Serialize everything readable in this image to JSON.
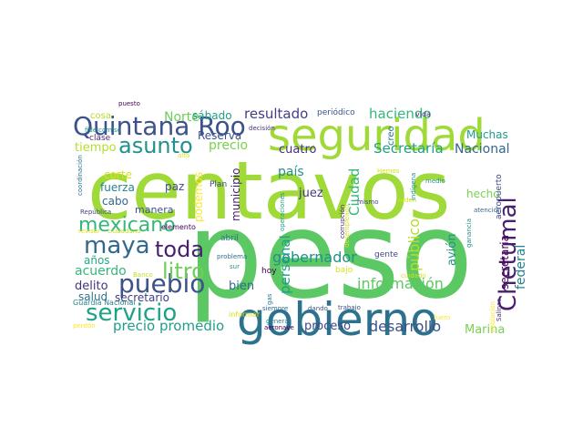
{
  "word_cloud": {
    "words": [
      {
        "text": "peso",
        "color": "#5cc863"
      },
      {
        "text": "centavos",
        "color": "#a0da39"
      },
      {
        "text": "gobierno",
        "color": "#2c728e"
      },
      {
        "text": "seguridad",
        "color": "#a0da39"
      },
      {
        "text": "Quintana Roo",
        "color": "#3b528b"
      },
      {
        "text": "Chetumal",
        "color": "#481f70"
      },
      {
        "text": "mexicano",
        "color": "#35b779"
      },
      {
        "text": "maya",
        "color": "#31688e"
      },
      {
        "text": "asunto",
        "color": "#21918c"
      },
      {
        "text": "pueblo",
        "color": "#3b528b"
      },
      {
        "text": "servicio",
        "color": "#1fa188"
      },
      {
        "text": "toda",
        "color": "#481f70"
      },
      {
        "text": "litro",
        "color": "#6ece58"
      },
      {
        "text": "gobernador",
        "color": "#21918c"
      },
      {
        "text": "precio promedio",
        "color": "#1f9e89"
      },
      {
        "text": "desarrollo",
        "color": "#3b528b"
      },
      {
        "text": "información",
        "color": "#5cc863"
      },
      {
        "text": "federal",
        "color": "#26828e"
      },
      {
        "text": "público",
        "color": "#b5de2b"
      },
      {
        "text": "Secretaría",
        "color": "#1fa188"
      },
      {
        "text": "Nacional",
        "color": "#31688e"
      },
      {
        "text": "Ciudad",
        "color": "#35b779"
      },
      {
        "text": "personal",
        "color": "#1f9e89"
      },
      {
        "text": "avión",
        "color": "#21918c"
      },
      {
        "text": "secretaria",
        "color": "#440154"
      },
      {
        "text": "resultado",
        "color": "#433e85"
      },
      {
        "text": "haciendo",
        "color": "#35b779"
      },
      {
        "text": "Norte",
        "color": "#6ece58"
      },
      {
        "text": "sábado",
        "color": "#1f9e89"
      },
      {
        "text": "precio",
        "color": "#7ad151"
      },
      {
        "text": "cuatro",
        "color": "#46327e"
      },
      {
        "text": "país",
        "color": "#21918c"
      },
      {
        "text": "municipio",
        "color": "#481f70"
      },
      {
        "text": "podemos",
        "color": "#fde725"
      },
      {
        "text": "tiempo",
        "color": "#b5de2b"
      },
      {
        "text": "corte",
        "color": "#d8e219"
      },
      {
        "text": "fuerza",
        "color": "#26828e"
      },
      {
        "text": "cabo",
        "color": "#31688e"
      },
      {
        "text": "paz",
        "color": "#3e4989"
      },
      {
        "text": "juez",
        "color": "#443983"
      },
      {
        "text": "hecho",
        "color": "#7ad151"
      },
      {
        "text": "acuerdo",
        "color": "#35b779"
      },
      {
        "text": "delito",
        "color": "#46327e"
      },
      {
        "text": "salud",
        "color": "#2c728e"
      },
      {
        "text": "secretario",
        "color": "#433e85"
      },
      {
        "text": "bien",
        "color": "#31688e"
      },
      {
        "text": "proceso",
        "color": "#3e4989"
      },
      {
        "text": "Marina",
        "color": "#7ad151"
      },
      {
        "text": "Muchas",
        "color": "#1f9e89"
      },
      {
        "text": "años",
        "color": "#22a884"
      },
      {
        "text": "manera",
        "color": "#3b528b"
      },
      {
        "text": "cosa",
        "color": "#b5de2b"
      },
      {
        "text": "Plan",
        "color": "#3e4989"
      },
      {
        "text": "Reserva",
        "color": "#3b528b"
      },
      {
        "text": "creo",
        "color": "#2c728e"
      },
      {
        "text": "aeropuerto",
        "color": "#3e4989"
      },
      {
        "text": "hoy",
        "color": "#440154"
      },
      {
        "text": "bajo",
        "color": "#d8e219"
      },
      {
        "text": "gente",
        "color": "#3e4989"
      },
      {
        "text": "abril",
        "color": "#2c728e"
      },
      {
        "text": "periódico",
        "color": "#3b528b"
      },
      {
        "text": "puesto",
        "color": "#440154"
      },
      {
        "text": "fideicomiso",
        "color": "#21918c"
      },
      {
        "text": "decisión",
        "color": "#46327e"
      },
      {
        "text": "vida",
        "color": "#46327e"
      },
      {
        "text": "clase",
        "color": "#482878"
      },
      {
        "text": "alto",
        "color": "#d8e219"
      },
      {
        "text": "coordinación",
        "color": "#2c728e"
      },
      {
        "text": "República",
        "color": "#3e4989"
      },
      {
        "text": "elemento",
        "color": "#440154"
      },
      {
        "text": "revisar",
        "color": "#d8e219"
      },
      {
        "text": "ciudadano",
        "color": "#bddf26"
      },
      {
        "text": "Guardia Nacional",
        "color": "#26828e"
      },
      {
        "text": "problema",
        "color": "#2c728e"
      },
      {
        "text": "sur",
        "color": "#21918c"
      },
      {
        "text": "siempre",
        "color": "#31688e"
      },
      {
        "text": "dando",
        "color": "#3b528b"
      },
      {
        "text": "trabajo",
        "color": "#3e4989"
      },
      {
        "text": "cuidado",
        "color": "#d8e219"
      },
      {
        "text": "población",
        "color": "#fde725"
      },
      {
        "text": "informar",
        "color": "#d8e219"
      },
      {
        "text": "general",
        "color": "#26828e"
      },
      {
        "text": "aeronave",
        "color": "#440154"
      },
      {
        "text": "perdón",
        "color": "#fde725"
      },
      {
        "text": "fuero",
        "color": "#fde725"
      },
      {
        "text": "Salinas",
        "color": "#482878"
      },
      {
        "text": "atención",
        "color": "#31688e"
      },
      {
        "text": "orden",
        "color": "#d8e219"
      },
      {
        "text": "mismo",
        "color": "#3e4989"
      },
      {
        "text": "corrupción",
        "color": "#482878"
      },
      {
        "text": "operaciones",
        "color": "#1f9e89"
      },
      {
        "text": "indígena",
        "color": "#21918c"
      },
      {
        "text": "medio",
        "color": "#21918c"
      },
      {
        "text": "ganancia",
        "color": "#21918c"
      },
      {
        "text": "gas",
        "color": "#2c728e"
      },
      {
        "text": "Banco",
        "color": "#bddf26"
      },
      {
        "text": "desempleado",
        "color": "#d8e219"
      },
      {
        "text": "Hemos",
        "color": "#d8e219"
      }
    ]
  }
}
